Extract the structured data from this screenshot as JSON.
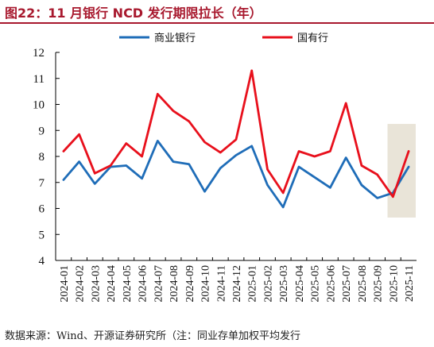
{
  "title": "图22：11 月银行 NCD 发行期限拉长（年）",
  "footer": "数据来源：Wind、开源证券研究所（注：同业存单加权平均发行",
  "chart_data": {
    "type": "line",
    "categories": [
      "2024-01",
      "2024-02",
      "2024-03",
      "2024-04",
      "2024-05",
      "2024-06",
      "2024-07",
      "2024-08",
      "2024-09",
      "2024-10",
      "2024-11",
      "2024-12",
      "2025-01",
      "2025-02",
      "2025-03",
      "2025-04",
      "2025-05",
      "2025-06",
      "2025-07",
      "2025-08",
      "2025-09",
      "2025-10",
      "2025-11"
    ],
    "series": [
      {
        "name": "商业银行",
        "color": "#1f6db8",
        "values": [
          7.1,
          7.8,
          6.95,
          7.6,
          7.65,
          7.15,
          8.6,
          7.8,
          7.7,
          6.65,
          7.55,
          8.05,
          8.4,
          6.9,
          6.05,
          7.6,
          7.2,
          6.8,
          7.95,
          6.9,
          6.4,
          6.6,
          7.6
        ]
      },
      {
        "name": "国有行",
        "color": "#e8101c",
        "values": [
          8.2,
          8.85,
          7.35,
          7.65,
          8.5,
          8.0,
          10.4,
          9.75,
          9.35,
          8.55,
          8.15,
          8.65,
          11.3,
          7.5,
          6.6,
          8.2,
          8.0,
          8.2,
          10.05,
          7.65,
          7.3,
          6.45,
          8.2
        ]
      }
    ],
    "ylim": [
      4,
      12
    ],
    "yticks": [
      4,
      5,
      6,
      7,
      8,
      9,
      10,
      11,
      12
    ],
    "highlight_categories": [
      "2025-10",
      "2025-11"
    ],
    "highlight_color": "#e9e4d8",
    "legend_position": "top",
    "grid": false
  }
}
